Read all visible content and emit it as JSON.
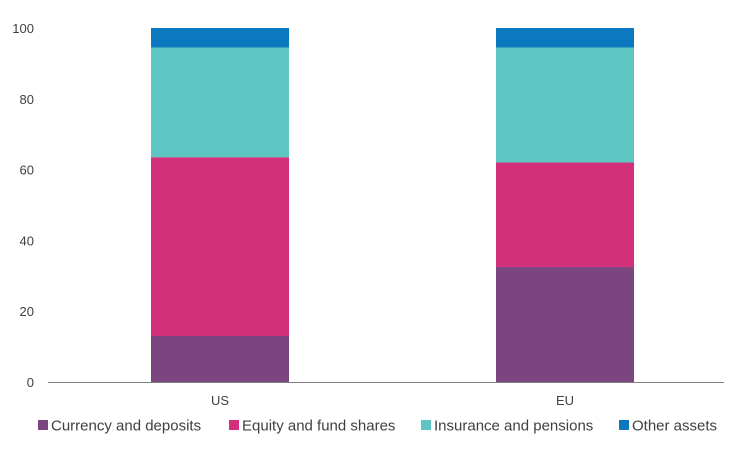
{
  "chart_data": {
    "type": "bar",
    "stacked": true,
    "categories": [
      "US",
      "EU"
    ],
    "series": [
      {
        "name": "Currency and deposits",
        "color": "#7B4680",
        "values": [
          13,
          32.5
        ]
      },
      {
        "name": "Equity and fund shares",
        "color": "#D2307A",
        "values": [
          50.5,
          29.5
        ]
      },
      {
        "name": "Insurance and pensions",
        "color": "#5EC6C2",
        "values": [
          31,
          32.5
        ]
      },
      {
        "name": "Other assets",
        "color": "#0B78BF",
        "values": [
          5.5,
          5.5
        ]
      }
    ],
    "ylim": [
      0,
      100
    ],
    "yticks": [
      "0",
      "20",
      "40",
      "60",
      "80",
      "100"
    ],
    "title": "",
    "xlabel": "",
    "ylabel": "",
    "grid": false,
    "legend_position": "bottom"
  }
}
